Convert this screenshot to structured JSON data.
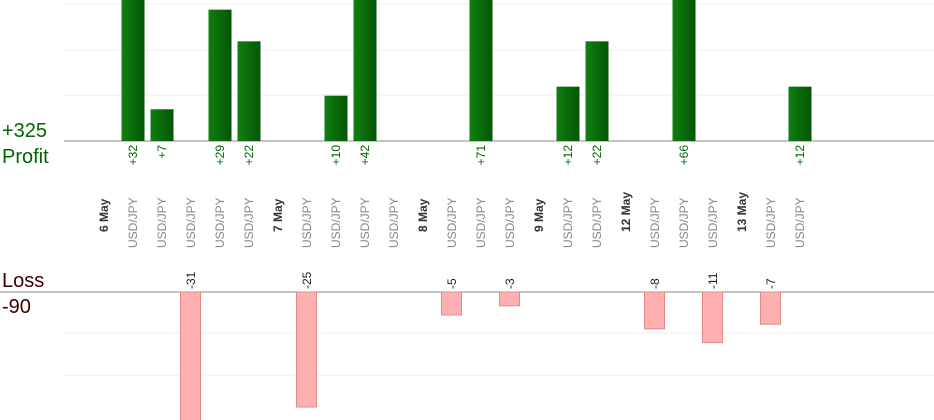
{
  "profit_panel": {
    "total": "+325",
    "label": "Profit"
  },
  "loss_panel": {
    "total": "-90",
    "label": "Loss"
  },
  "colors": {
    "profit_bar": "#0b6b0b",
    "profit_text": "#006600",
    "loss_bar": "#ffb0b0",
    "loss_text": "#3a0000",
    "date_text": "#333333",
    "pair_text": "#888888",
    "grid": "#eeeeee",
    "baseline": "#888888"
  },
  "chart_data": {
    "type": "bar",
    "title": "",
    "categories": [
      {
        "kind": "date",
        "label": "6 May"
      },
      {
        "kind": "trade",
        "label": "USD/JPY"
      },
      {
        "kind": "trade",
        "label": "USD/JPY"
      },
      {
        "kind": "trade",
        "label": "USD/JPY"
      },
      {
        "kind": "trade",
        "label": "USD/JPY"
      },
      {
        "kind": "trade",
        "label": "USD/JPY"
      },
      {
        "kind": "date",
        "label": "7 May"
      },
      {
        "kind": "trade",
        "label": "USD/JPY"
      },
      {
        "kind": "trade",
        "label": "USD/JPY"
      },
      {
        "kind": "trade",
        "label": "USD/JPY"
      },
      {
        "kind": "trade",
        "label": "USD/JPY"
      },
      {
        "kind": "date",
        "label": "8 May"
      },
      {
        "kind": "trade",
        "label": "USD/JPY"
      },
      {
        "kind": "trade",
        "label": "USD/JPY"
      },
      {
        "kind": "trade",
        "label": "USD/JPY"
      },
      {
        "kind": "date",
        "label": "9 May"
      },
      {
        "kind": "trade",
        "label": "USD/JPY"
      },
      {
        "kind": "trade",
        "label": "USD/JPY"
      },
      {
        "kind": "date",
        "label": "12 May"
      },
      {
        "kind": "trade",
        "label": "USD/JPY"
      },
      {
        "kind": "trade",
        "label": "USD/JPY"
      },
      {
        "kind": "trade",
        "label": "USD/JPY"
      },
      {
        "kind": "date",
        "label": "13 May"
      },
      {
        "kind": "trade",
        "label": "USD/JPY"
      },
      {
        "kind": "trade",
        "label": "USD/JPY"
      }
    ],
    "values": [
      null,
      32,
      7,
      -31,
      29,
      22,
      null,
      -25,
      10,
      42,
      null,
      null,
      -5,
      71,
      -3,
      null,
      12,
      22,
      null,
      -8,
      66,
      -11,
      null,
      -7,
      12
    ],
    "value_labels": [
      "",
      "+32",
      "+7",
      "-31",
      "+29",
      "+22",
      "",
      "-25",
      "+10",
      "+42",
      "",
      "",
      "-5",
      "+71",
      "-3",
      "",
      "+12",
      "+22",
      "",
      "-8",
      "+66",
      "-11",
      "",
      "-7",
      "+12"
    ],
    "profit_ylim": [
      0,
      32
    ],
    "loss_ylim": [
      -25,
      0
    ],
    "grid": true
  }
}
